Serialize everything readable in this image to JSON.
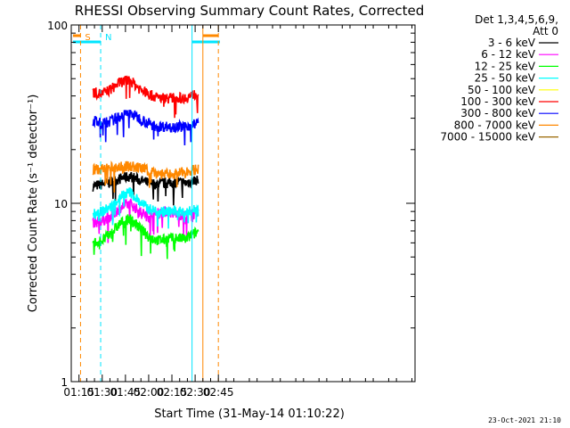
{
  "chart_data": {
    "type": "line",
    "title": "RHESSI Observing Summary Count Rates, Corrected",
    "xlabel": "Start Time (31-May-14 01:10:22)",
    "ylabel": "Corrected Count Rate (s⁻¹ detector⁻¹)",
    "y_scale": "log",
    "ylim": [
      1,
      100
    ],
    "xlim_minutes": [
      70,
      292
    ],
    "x_ticks": [
      {
        "label": "01:15",
        "minutes": 75
      },
      {
        "label": "01:30",
        "minutes": 90
      },
      {
        "label": "01:45",
        "minutes": 105
      },
      {
        "label": "02:00",
        "minutes": 120
      },
      {
        "label": "02:15",
        "minutes": 135
      },
      {
        "label": "02:30",
        "minutes": 150
      },
      {
        "label": "02:45",
        "minutes": 165
      }
    ],
    "y_ticks": [
      {
        "label": "1",
        "value": 1
      },
      {
        "label": "10",
        "value": 10
      },
      {
        "label": "100",
        "value": 100
      }
    ],
    "grid": false,
    "legend_position": "right",
    "legend_header": [
      "Det 1,3,4,5,6,9,",
      "Att 0"
    ],
    "series": [
      {
        "name": "3 - 6 keV",
        "color": "#000000",
        "x": [
          "01:24",
          "01:30",
          "01:36",
          "01:42",
          "01:48",
          "01:54",
          "02:00",
          "02:06",
          "02:12",
          "02:18",
          "02:24",
          "02:30",
          "02:32"
        ],
        "values": [
          12.5,
          12.8,
          13.2,
          13.8,
          14.2,
          13.5,
          13.0,
          12.8,
          13.0,
          13.2,
          13.0,
          13.5,
          13.5
        ]
      },
      {
        "name": "6 - 12 keV",
        "color": "#ff00ff",
        "x": [
          "01:24",
          "01:30",
          "01:36",
          "01:42",
          "01:48",
          "01:54",
          "02:00",
          "02:06",
          "02:12",
          "02:18",
          "02:24",
          "02:30",
          "02:32"
        ],
        "values": [
          7.8,
          8.0,
          8.5,
          9.5,
          10.0,
          9.0,
          8.5,
          8.8,
          9.0,
          8.7,
          8.5,
          8.8,
          9.0
        ]
      },
      {
        "name": "12 - 25 keV",
        "color": "#00ff00",
        "x": [
          "01:24",
          "01:30",
          "01:36",
          "01:42",
          "01:48",
          "01:54",
          "02:00",
          "02:06",
          "02:12",
          "02:18",
          "02:24",
          "02:30",
          "02:32"
        ],
        "values": [
          6.0,
          6.2,
          6.8,
          7.8,
          8.2,
          7.3,
          6.5,
          6.2,
          6.3,
          6.4,
          6.3,
          6.8,
          7.0
        ]
      },
      {
        "name": "25 - 50 keV",
        "color": "#00ffff",
        "x": [
          "01:24",
          "01:30",
          "01:36",
          "01:42",
          "01:48",
          "01:54",
          "02:00",
          "02:06",
          "02:12",
          "02:18",
          "02:24",
          "02:30",
          "02:32"
        ],
        "values": [
          8.8,
          9.0,
          9.6,
          11.0,
          11.6,
          10.2,
          9.3,
          9.0,
          9.0,
          9.0,
          8.9,
          9.2,
          9.5
        ]
      },
      {
        "name": "50 - 100 keV",
        "color": "#ffff00",
        "x": [],
        "values": []
      },
      {
        "name": "100 - 300 keV",
        "color": "#ff0000",
        "x": [
          "01:24",
          "01:30",
          "01:36",
          "01:42",
          "01:48",
          "01:54",
          "02:00",
          "02:06",
          "02:12",
          "02:18",
          "02:24",
          "02:30",
          "02:32"
        ],
        "values": [
          42,
          41,
          44,
          48,
          49,
          44,
          41,
          39,
          39,
          39,
          39,
          41,
          42
        ]
      },
      {
        "name": "300 - 800 keV",
        "color": "#0000ff",
        "x": [
          "01:24",
          "01:30",
          "01:36",
          "01:42",
          "01:48",
          "01:54",
          "02:00",
          "02:06",
          "02:12",
          "02:18",
          "02:24",
          "02:30",
          "02:32"
        ],
        "values": [
          29,
          28,
          29,
          31,
          32,
          30,
          28,
          27,
          27,
          27,
          27,
          28,
          28
        ]
      },
      {
        "name": "800 - 7000 keV",
        "color": "#ff8800",
        "x": [
          "01:24",
          "01:30",
          "01:36",
          "01:42",
          "01:48",
          "01:54",
          "02:00",
          "02:06",
          "02:12",
          "02:18",
          "02:24",
          "02:30",
          "02:32"
        ],
        "values": [
          15.5,
          15.5,
          15.8,
          16.0,
          16.2,
          15.8,
          15.3,
          14.8,
          14.5,
          14.7,
          15.0,
          15.5,
          15.5
        ]
      },
      {
        "name": "7000 - 15000 keV",
        "color": "#996600",
        "x": [],
        "values": []
      }
    ],
    "markers": [
      {
        "label": "S",
        "color": "#ff8800",
        "time": "01:16",
        "style": "dashed"
      },
      {
        "label": "N",
        "color": "#00e5ff",
        "time": "01:29",
        "style": "dashed"
      },
      {
        "label": "",
        "color": "#00e5ff",
        "time": "02:28",
        "style": "solid"
      },
      {
        "label": "",
        "color": "#ff8800",
        "time": "02:35",
        "style": "solid"
      },
      {
        "label": "",
        "color": "#ff8800",
        "time": "02:45",
        "style": "dashed"
      }
    ],
    "state_bars": [
      {
        "label": "S",
        "color": "#ff8800",
        "segments": [
          [
            "01:11",
            "01:16"
          ],
          [
            "02:35",
            "02:45"
          ]
        ]
      },
      {
        "label": "N",
        "color": "#00e5ff",
        "segments": [
          [
            "01:11",
            "01:29"
          ],
          [
            "02:28",
            "02:46"
          ]
        ]
      }
    ]
  },
  "footer": {
    "timestamp": "23-Oct-2021 21:10"
  }
}
